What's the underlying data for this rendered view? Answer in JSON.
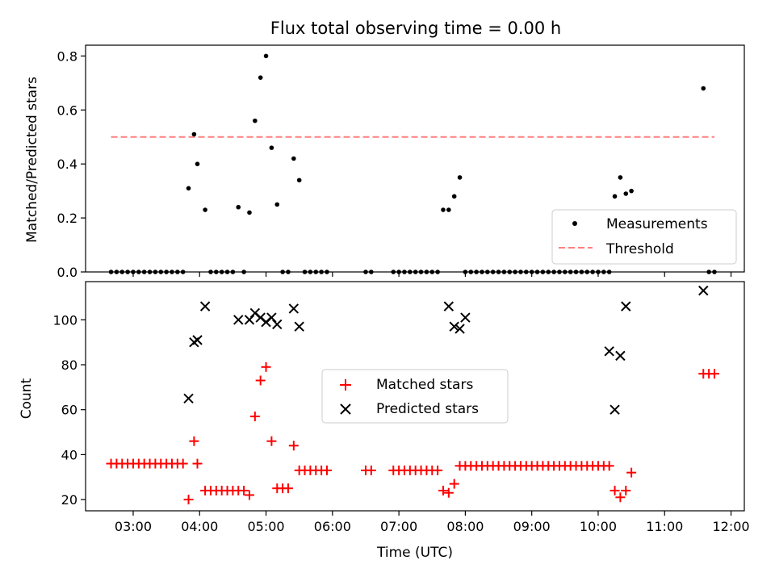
{
  "chart_data": [
    {
      "type": "scatter",
      "title": "Flux total observing time = 0.00 h",
      "ylabel": "Matched/Predicted stars",
      "xlabel": "",
      "xlim": [
        "02:17",
        "12:12"
      ],
      "ylim": [
        0,
        0.84
      ],
      "yticks": [
        "0.0",
        "0.2",
        "0.4",
        "0.6",
        "0.8"
      ],
      "legend_position": "lower-right",
      "grid": false,
      "threshold": {
        "name": "Threshold",
        "value": 0.5,
        "x_range": [
          "02:40",
          "11:45"
        ],
        "color": "#ff7f7f"
      },
      "series": [
        {
          "name": "Measurements",
          "color": "#000000",
          "x": [
            "02:40",
            "02:45",
            "02:50",
            "02:55",
            "03:00",
            "03:05",
            "03:10",
            "03:15",
            "03:20",
            "03:25",
            "03:30",
            "03:35",
            "03:40",
            "03:45",
            "03:50",
            "03:55",
            "03:58",
            "04:05",
            "04:10",
            "04:15",
            "04:20",
            "04:25",
            "04:30",
            "04:35",
            "04:40",
            "04:45",
            "04:50",
            "04:55",
            "05:00",
            "05:05",
            "05:10",
            "05:15",
            "05:20",
            "05:25",
            "05:30",
            "05:35",
            "05:40",
            "05:45",
            "05:50",
            "05:55",
            "06:30",
            "06:35",
            "06:55",
            "07:00",
            "07:05",
            "07:10",
            "07:15",
            "07:20",
            "07:25",
            "07:30",
            "07:35",
            "07:40",
            "07:45",
            "07:50",
            "07:55",
            "08:00",
            "08:05",
            "08:10",
            "08:15",
            "08:20",
            "08:25",
            "08:30",
            "08:35",
            "08:40",
            "08:45",
            "08:50",
            "08:55",
            "09:00",
            "09:05",
            "09:10",
            "09:15",
            "09:20",
            "09:25",
            "09:30",
            "09:35",
            "09:40",
            "09:45",
            "09:50",
            "09:55",
            "10:00",
            "10:05",
            "10:10",
            "10:15",
            "10:20",
            "10:25",
            "10:30",
            "11:35",
            "11:40",
            "11:45"
          ],
          "y": [
            0,
            0,
            0,
            0,
            0,
            0,
            0,
            0,
            0,
            0,
            0,
            0,
            0,
            0,
            0.31,
            0.51,
            0.4,
            0.23,
            0,
            0,
            0,
            0,
            0,
            0.24,
            0,
            0.22,
            0.56,
            0.72,
            0.8,
            0.46,
            0.25,
            0,
            0,
            0.42,
            0.34,
            0,
            0,
            0,
            0,
            0,
            0,
            0,
            0,
            0,
            0,
            0,
            0,
            0,
            0,
            0,
            0,
            0.23,
            0.23,
            0.28,
            0.35,
            0,
            0,
            0,
            0,
            0,
            0,
            0,
            0,
            0,
            0,
            0,
            0,
            0,
            0,
            0,
            0,
            0,
            0,
            0,
            0,
            0,
            0,
            0,
            0,
            0,
            0,
            0,
            0.28,
            0.35,
            0.29,
            0.3,
            0.68,
            0,
            0
          ]
        }
      ]
    },
    {
      "type": "scatter",
      "title": "",
      "xlabel": "Time (UTC)",
      "ylabel": "Count",
      "xlim": [
        "02:17",
        "12:12"
      ],
      "ylim": [
        15,
        117
      ],
      "yticks": [
        "20",
        "40",
        "60",
        "80",
        "100"
      ],
      "xticks": [
        "03:00",
        "04:00",
        "05:00",
        "06:00",
        "07:00",
        "08:00",
        "09:00",
        "10:00",
        "11:00",
        "12:00"
      ],
      "legend_position": "center",
      "grid": false,
      "series": [
        {
          "name": "Matched stars",
          "marker": "plus",
          "color": "#ff0000",
          "x": [
            "02:40",
            "02:45",
            "02:50",
            "02:55",
            "03:00",
            "03:05",
            "03:10",
            "03:15",
            "03:20",
            "03:25",
            "03:30",
            "03:35",
            "03:40",
            "03:45",
            "03:50",
            "03:55",
            "03:58",
            "04:05",
            "04:10",
            "04:15",
            "04:20",
            "04:25",
            "04:30",
            "04:35",
            "04:40",
            "04:45",
            "04:50",
            "04:55",
            "05:00",
            "05:05",
            "05:10",
            "05:15",
            "05:20",
            "05:25",
            "05:30",
            "05:35",
            "05:40",
            "05:45",
            "05:50",
            "05:55",
            "06:30",
            "06:35",
            "06:55",
            "07:00",
            "07:05",
            "07:10",
            "07:15",
            "07:20",
            "07:25",
            "07:30",
            "07:35",
            "07:40",
            "07:45",
            "07:50",
            "07:55",
            "08:00",
            "08:05",
            "08:10",
            "08:15",
            "08:20",
            "08:25",
            "08:30",
            "08:35",
            "08:40",
            "08:45",
            "08:50",
            "08:55",
            "09:00",
            "09:05",
            "09:10",
            "09:15",
            "09:20",
            "09:25",
            "09:30",
            "09:35",
            "09:40",
            "09:45",
            "09:50",
            "09:55",
            "10:00",
            "10:05",
            "10:10",
            "10:15",
            "10:20",
            "10:25",
            "10:30",
            "11:35",
            "11:40",
            "11:45"
          ],
          "y": [
            36,
            36,
            36,
            36,
            36,
            36,
            36,
            36,
            36,
            36,
            36,
            36,
            36,
            36,
            20,
            46,
            36,
            24,
            24,
            24,
            24,
            24,
            24,
            24,
            24,
            22,
            57,
            73,
            79,
            46,
            25,
            25,
            25,
            44,
            33,
            33,
            33,
            33,
            33,
            33,
            33,
            33,
            33,
            33,
            33,
            33,
            33,
            33,
            33,
            33,
            33,
            24,
            23,
            27,
            35,
            35,
            35,
            35,
            35,
            35,
            35,
            35,
            35,
            35,
            35,
            35,
            35,
            35,
            35,
            35,
            35,
            35,
            35,
            35,
            35,
            35,
            35,
            35,
            35,
            35,
            35,
            35,
            24,
            21,
            24,
            32,
            76,
            76,
            76
          ]
        },
        {
          "name": "Predicted stars",
          "marker": "x",
          "color": "#000000",
          "x": [
            "03:50",
            "03:55",
            "03:58",
            "04:05",
            "04:35",
            "04:45",
            "04:50",
            "04:55",
            "05:00",
            "05:05",
            "05:10",
            "05:25",
            "05:30",
            "07:45",
            "07:50",
            "07:55",
            "08:00",
            "10:10",
            "10:15",
            "10:20",
            "10:25",
            "11:35"
          ],
          "y": [
            65,
            90,
            91,
            106,
            100,
            100,
            103,
            101,
            99,
            101,
            98,
            105,
            97,
            106,
            97,
            96,
            101,
            86,
            60,
            84,
            106,
            113
          ]
        }
      ]
    }
  ]
}
